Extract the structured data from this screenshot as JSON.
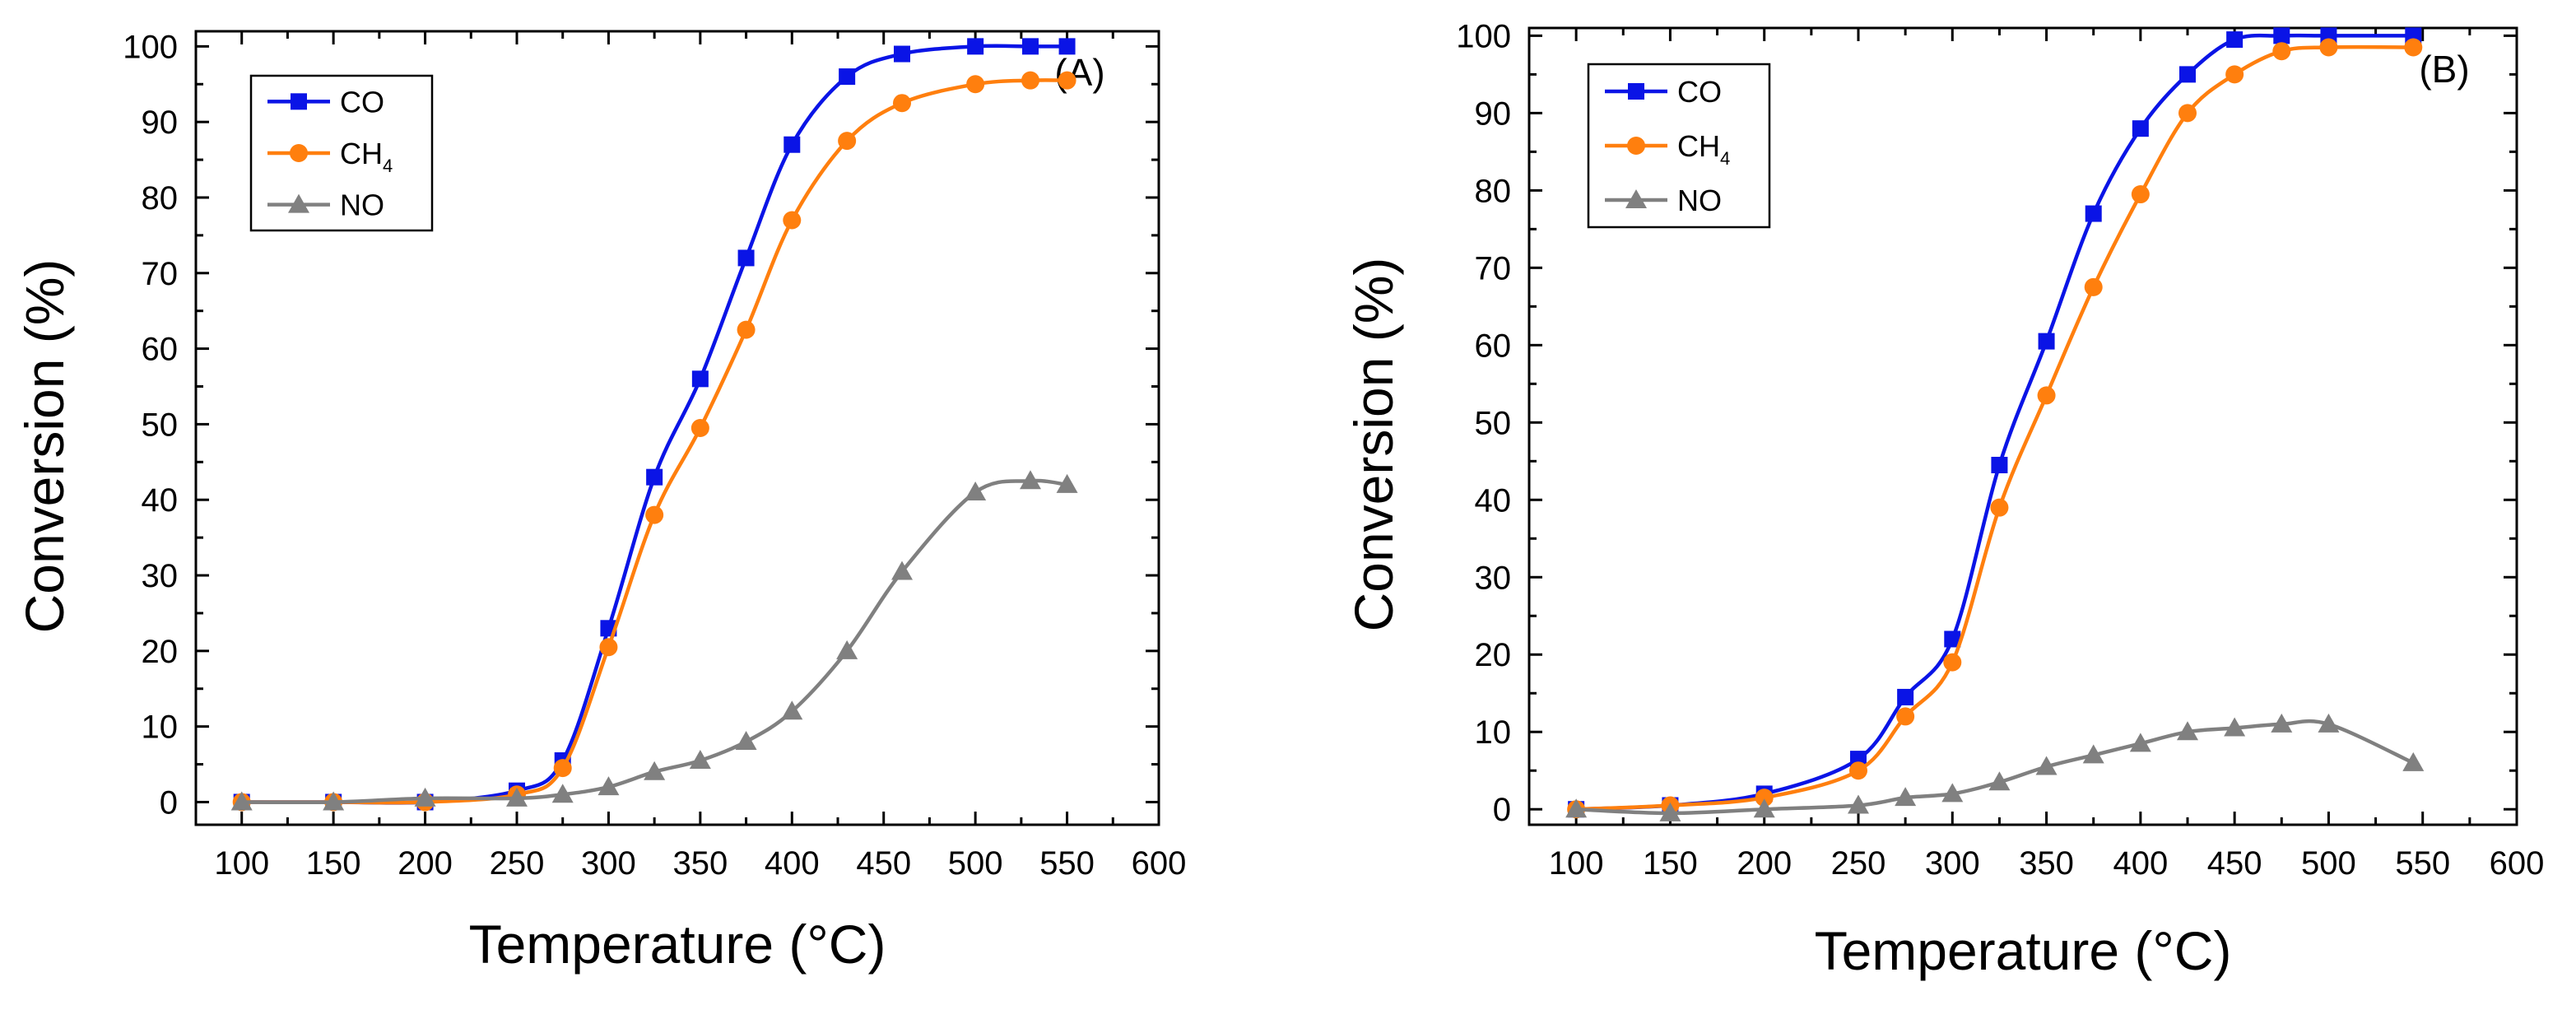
{
  "figure": "Two-panel conversion vs temperature plot",
  "colors": {
    "CO": "#0a14e6",
    "CH4": "#ff7f0e",
    "NO": "#808080",
    "axis": "#000000"
  },
  "chart_data": [
    {
      "id": "panel-a",
      "type": "line",
      "panel_label": "(A)",
      "xlabel": "Temperature (°C)",
      "ylabel": "Conversion (%)",
      "xlim": [
        75,
        600
      ],
      "ylim": [
        -3,
        102
      ],
      "xticks": [
        100,
        150,
        200,
        250,
        300,
        350,
        400,
        450,
        500,
        550,
        600
      ],
      "yticks": [
        0,
        10,
        20,
        30,
        40,
        50,
        60,
        70,
        80,
        90,
        100
      ],
      "legend_position": "top-left",
      "series": [
        {
          "name": "CO",
          "label_main": "CO",
          "label_sub": "",
          "marker": "square",
          "x": [
            100,
            150,
            200,
            250,
            275,
            300,
            325,
            350,
            375,
            400,
            430,
            460,
            500,
            530,
            550
          ],
          "y": [
            0,
            0,
            0,
            1.5,
            5.5,
            23,
            43,
            56,
            72,
            87,
            96,
            99,
            100,
            100,
            100
          ]
        },
        {
          "name": "CH4",
          "label_main": "CH",
          "label_sub": "4",
          "marker": "circle",
          "x": [
            100,
            150,
            200,
            250,
            275,
            300,
            325,
            350,
            375,
            400,
            430,
            460,
            500,
            530,
            550
          ],
          "y": [
            0,
            0,
            0,
            1,
            4.5,
            20.5,
            38,
            49.5,
            62.5,
            77,
            87.5,
            92.5,
            95,
            95.5,
            95.5
          ]
        },
        {
          "name": "NO",
          "label_main": "NO",
          "label_sub": "",
          "marker": "triangle",
          "x": [
            100,
            150,
            200,
            250,
            275,
            300,
            325,
            350,
            375,
            400,
            430,
            460,
            500,
            530,
            550
          ],
          "y": [
            0,
            0,
            0.5,
            0.5,
            1,
            2,
            4,
            5.5,
            8,
            12,
            20,
            30.5,
            41,
            42.5,
            42
          ]
        }
      ]
    },
    {
      "id": "panel-b",
      "type": "line",
      "panel_label": "(B)",
      "xlabel": "Temperature (°C)",
      "ylabel": "Conversion (%)",
      "xlim": [
        75,
        600
      ],
      "ylim": [
        -2,
        101
      ],
      "xticks": [
        100,
        150,
        200,
        250,
        300,
        350,
        400,
        450,
        500,
        550,
        600
      ],
      "yticks": [
        0,
        10,
        20,
        30,
        40,
        50,
        60,
        70,
        80,
        90,
        100
      ],
      "legend_position": "top-left",
      "series": [
        {
          "name": "CO",
          "label_main": "CO",
          "label_sub": "",
          "marker": "square",
          "x": [
            100,
            150,
            200,
            250,
            275,
            300,
            325,
            350,
            375,
            400,
            425,
            450,
            475,
            500,
            545
          ],
          "y": [
            0,
            0.5,
            2,
            6.5,
            14.5,
            22,
            44.5,
            60.5,
            77,
            88,
            95,
            99.5,
            100,
            100,
            100
          ]
        },
        {
          "name": "CH4",
          "label_main": "CH",
          "label_sub": "4",
          "marker": "circle",
          "x": [
            100,
            150,
            200,
            250,
            275,
            300,
            325,
            350,
            375,
            400,
            425,
            450,
            475,
            500,
            545
          ],
          "y": [
            0,
            0.5,
            1.5,
            5,
            12,
            19,
            39,
            53.5,
            67.5,
            79.5,
            90,
            95,
            98,
            98.5,
            98.5
          ]
        },
        {
          "name": "NO",
          "label_main": "NO",
          "label_sub": "",
          "marker": "triangle",
          "x": [
            100,
            150,
            200,
            250,
            275,
            300,
            325,
            350,
            375,
            400,
            425,
            450,
            475,
            500,
            545
          ],
          "y": [
            0,
            -0.5,
            0,
            0.5,
            1.5,
            2,
            3.5,
            5.5,
            7,
            8.5,
            10,
            10.5,
            11,
            11,
            6
          ]
        }
      ]
    }
  ]
}
